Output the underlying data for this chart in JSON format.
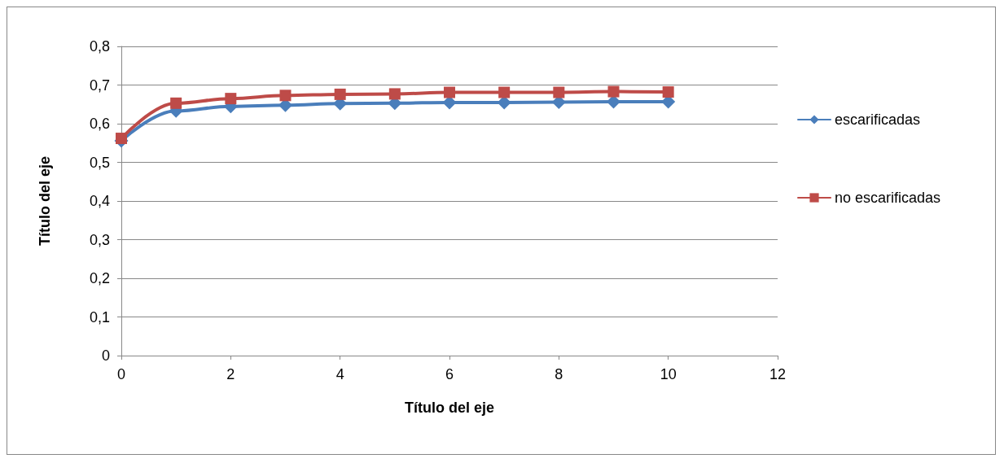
{
  "chart_data": {
    "type": "line",
    "xlabel": "Título del eje",
    "ylabel": "Título del eje",
    "x": [
      0,
      1,
      2,
      3,
      4,
      5,
      6,
      7,
      8,
      9,
      10
    ],
    "series": [
      {
        "name": "escarificadas",
        "color": "#4a7ebb",
        "marker": "diamond",
        "values": [
          0.556,
          0.633,
          0.645,
          0.648,
          0.652,
          0.653,
          0.655,
          0.655,
          0.656,
          0.657,
          0.657
        ]
      },
      {
        "name": "no escarificadas",
        "color": "#be4b48",
        "marker": "square",
        "values": [
          0.562,
          0.653,
          0.665,
          0.673,
          0.676,
          0.677,
          0.681,
          0.681,
          0.681,
          0.683,
          0.682
        ]
      }
    ],
    "xlim": [
      0,
      12
    ],
    "xticks": [
      0,
      2,
      4,
      6,
      8,
      10,
      12
    ],
    "ylim": [
      0,
      0.8
    ],
    "yticks": [
      0,
      {
        "value": 0.1,
        "label": "0,1"
      },
      {
        "value": 0.2,
        "label": "0,2"
      },
      {
        "value": 0.3,
        "label": "0,3"
      },
      {
        "value": 0.4,
        "label": "0,4"
      },
      {
        "value": 0.5,
        "label": "0,5"
      },
      {
        "value": 0.6,
        "label": "0,6"
      },
      {
        "value": 0.7,
        "label": "0,7"
      },
      {
        "value": 0.8,
        "label": "0,8"
      }
    ],
    "grid": "y",
    "legend": "right",
    "line_style": "solid"
  }
}
